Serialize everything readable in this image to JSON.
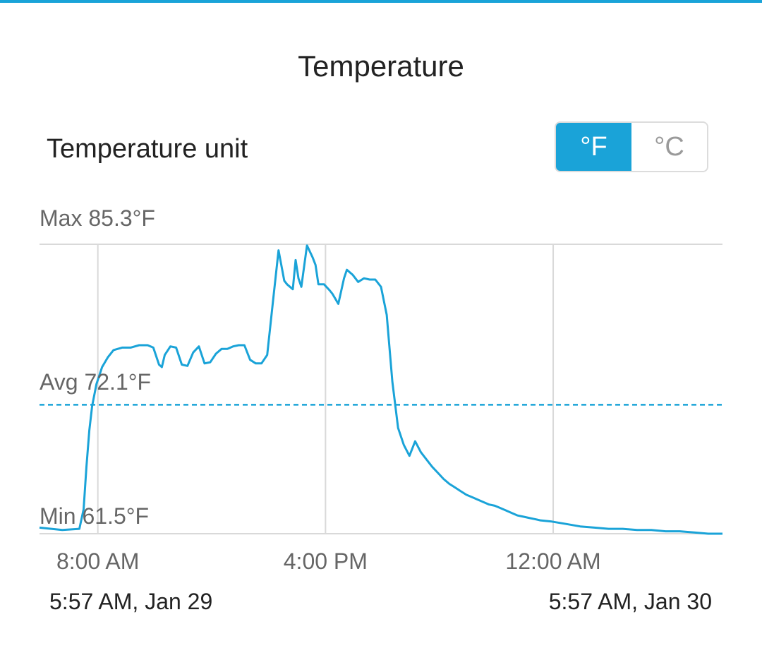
{
  "header": {
    "title": "Temperature"
  },
  "settings": {
    "unit_label": "Temperature unit",
    "unit_options": [
      "°F",
      "°C"
    ],
    "selected_unit": "°F"
  },
  "stats": {
    "max_label": "Max 85.3°F",
    "avg_label": "Avg 72.1°F",
    "min_label": "Min 61.5°F"
  },
  "time_range": {
    "start": "5:57 AM,  Jan 29",
    "end": "5:57 AM,  Jan 30"
  },
  "colors": {
    "accent": "#1aa3d8",
    "line": "#1aa3d8",
    "avg_line": "#1aa3d8",
    "grid": "#d9d9d9",
    "text": "#222222",
    "muted_text": "#666666"
  },
  "chart_data": {
    "type": "line",
    "title": "",
    "xlabel": "",
    "ylabel": "",
    "x_ticks": [
      "8:00 AM",
      "4:00 PM",
      "12:00 AM"
    ],
    "x_tick_hours": [
      2.05,
      10.05,
      18.05
    ],
    "x_range_hours": [
      0,
      24
    ],
    "ylim": [
      61.5,
      85.3
    ],
    "avg": 72.1,
    "series": [
      {
        "name": "",
        "x": [
          0,
          0.8,
          1.4,
          1.55,
          1.65,
          1.75,
          1.85,
          2.0,
          2.2,
          2.4,
          2.6,
          2.9,
          3.2,
          3.5,
          3.8,
          4.0,
          4.2,
          4.3,
          4.4,
          4.6,
          4.8,
          5.0,
          5.2,
          5.4,
          5.6,
          5.8,
          6.0,
          6.2,
          6.4,
          6.6,
          6.8,
          7.0,
          7.2,
          7.4,
          7.6,
          7.8,
          8.0,
          8.2,
          8.4,
          8.6,
          8.7,
          8.9,
          9.0,
          9.1,
          9.2,
          9.4,
          9.6,
          9.7,
          9.8,
          10.0,
          10.2,
          10.3,
          10.5,
          10.7,
          10.8,
          11.0,
          11.2,
          11.4,
          11.6,
          11.8,
          12.0,
          12.2,
          12.4,
          12.6,
          12.8,
          13.0,
          13.2,
          13.4,
          13.6,
          13.8,
          14.0,
          14.2,
          14.4,
          14.6,
          14.8,
          15.0,
          15.2,
          15.4,
          15.6,
          15.8,
          16.0,
          16.2,
          16.4,
          16.6,
          16.8,
          17.0,
          17.2,
          17.4,
          17.6,
          18.0,
          18.5,
          19.0,
          19.5,
          20.0,
          20.5,
          21.0,
          21.5,
          22.0,
          22.5,
          23.0,
          23.5,
          24.0
        ],
        "values": [
          62.0,
          61.8,
          61.9,
          63.5,
          67.0,
          70.0,
          72.0,
          73.8,
          75.2,
          76.0,
          76.6,
          76.8,
          76.8,
          77.0,
          77.0,
          76.8,
          75.4,
          75.2,
          76.2,
          76.9,
          76.8,
          75.4,
          75.3,
          76.4,
          76.9,
          75.5,
          75.6,
          76.3,
          76.7,
          76.7,
          76.9,
          77.0,
          77.0,
          75.8,
          75.5,
          75.5,
          76.2,
          80.5,
          84.8,
          82.3,
          82.0,
          81.6,
          84.0,
          82.5,
          81.8,
          85.2,
          84.2,
          83.6,
          82.0,
          82.0,
          81.5,
          81.2,
          80.4,
          82.5,
          83.2,
          82.8,
          82.2,
          82.5,
          82.4,
          82.4,
          81.8,
          79.5,
          74.0,
          70.2,
          68.8,
          67.9,
          69.1,
          68.2,
          67.6,
          67.0,
          66.5,
          66.0,
          65.6,
          65.3,
          65.0,
          64.7,
          64.5,
          64.3,
          64.1,
          63.9,
          63.8,
          63.6,
          63.4,
          63.2,
          63.0,
          62.9,
          62.8,
          62.7,
          62.6,
          62.5,
          62.3,
          62.1,
          62.0,
          61.9,
          61.9,
          61.8,
          61.8,
          61.7,
          61.7,
          61.6,
          61.5,
          61.5
        ]
      }
    ],
    "grid": true
  }
}
